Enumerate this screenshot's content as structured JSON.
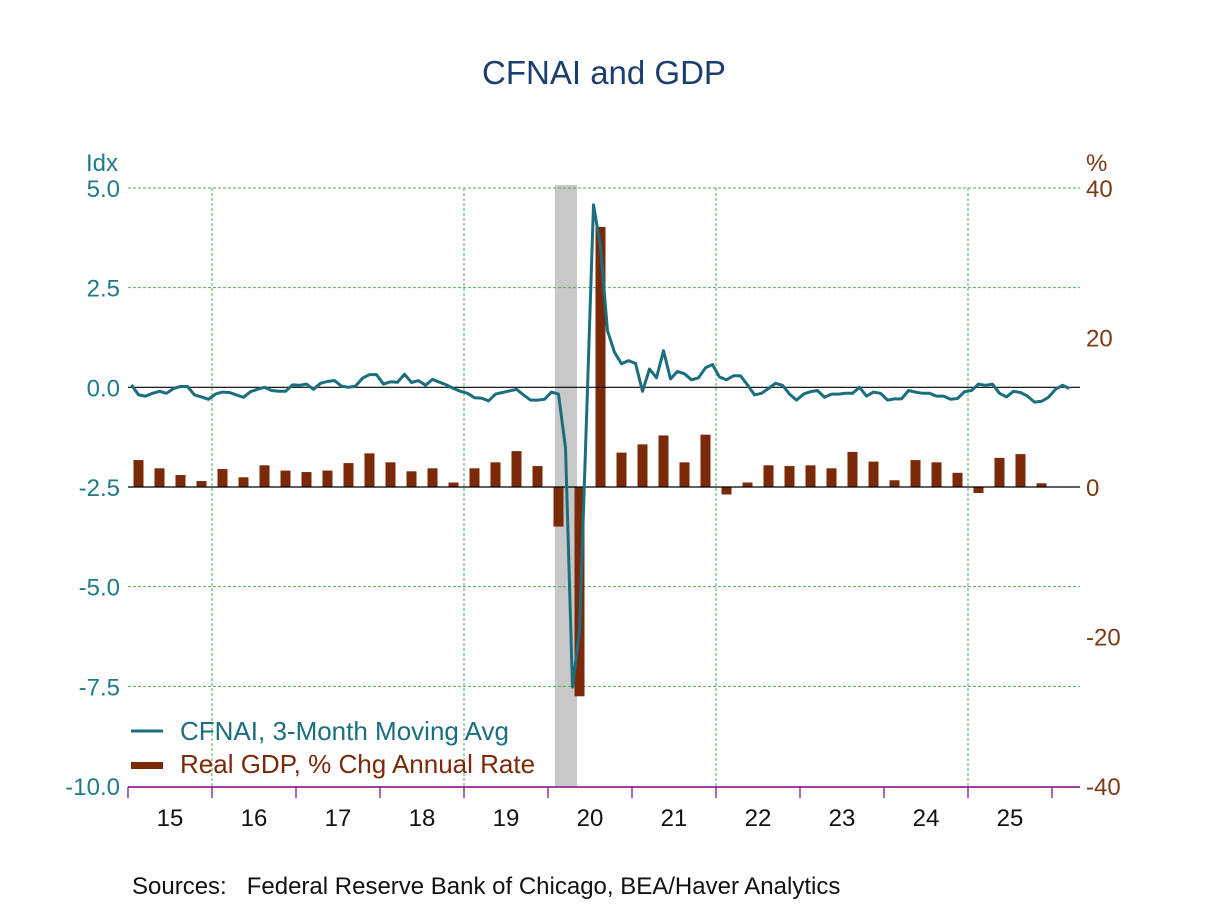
{
  "colors": {
    "cfnai": "#1a6e7e",
    "gdp": "#7a2a08",
    "title": "#1b3e6e",
    "left_axis": "#1f7a8a",
    "right_axis": "#7a3a14",
    "grid": "#4caf50",
    "axis": "#800080",
    "recession": "#c8c8c8"
  },
  "chart_data": {
    "type": "bar+line",
    "title": "CFNAI and GDP",
    "left_axis": {
      "unit": "Idx",
      "ylim": [
        -10.0,
        5.0
      ],
      "ticks": [
        "5.0",
        "2.5",
        "0.0",
        "-2.5",
        "-5.0",
        "-7.5",
        "-10.0"
      ]
    },
    "right_axis": {
      "unit": "%",
      "ylim": [
        -40,
        40
      ],
      "ticks": [
        "40",
        "20",
        "0",
        "-20",
        "-40"
      ]
    },
    "x_axis": {
      "xlim": [
        "2015-01",
        "2026-05"
      ],
      "tick_labels": [
        "15",
        "16",
        "17",
        "18",
        "19",
        "20",
        "21",
        "22",
        "23",
        "24",
        "25"
      ]
    },
    "grid": true,
    "legend_position": "bottom-left",
    "recession_shading": [
      "2020-02",
      "2020-04"
    ],
    "source": "Sources:   Federal Reserve Bank of Chicago, BEA/Haver Analytics",
    "series": [
      {
        "name": "CFNAI, 3-Month Moving Avg",
        "type": "line",
        "axis": "left",
        "start": "2015-01",
        "frequency": "monthly",
        "values": [
          0.06,
          -0.19,
          -0.22,
          -0.15,
          -0.1,
          -0.15,
          -0.03,
          0.02,
          0.02,
          -0.19,
          -0.24,
          -0.3,
          -0.17,
          -0.12,
          -0.13,
          -0.19,
          -0.25,
          -0.11,
          -0.05,
          0.0,
          -0.08,
          -0.1,
          -0.1,
          0.06,
          0.05,
          0.08,
          -0.05,
          0.1,
          0.15,
          0.17,
          0.03,
          0.0,
          0.03,
          0.23,
          0.32,
          0.32,
          0.08,
          0.14,
          0.13,
          0.33,
          0.12,
          0.17,
          0.05,
          0.2,
          0.13,
          0.06,
          -0.03,
          -0.1,
          -0.15,
          -0.26,
          -0.27,
          -0.34,
          -0.17,
          -0.13,
          -0.09,
          -0.05,
          -0.19,
          -0.32,
          -0.32,
          -0.3,
          -0.12,
          -0.17,
          -1.52,
          -7.52,
          -6.1,
          -0.8,
          4.58,
          3.52,
          1.42,
          0.88,
          0.59,
          0.67,
          0.6,
          -0.1,
          0.46,
          0.24,
          0.92,
          0.21,
          0.4,
          0.34,
          0.19,
          0.24,
          0.49,
          0.57,
          0.26,
          0.19,
          0.29,
          0.29,
          0.06,
          -0.19,
          -0.15,
          -0.03,
          0.1,
          0.05,
          -0.17,
          -0.32,
          -0.17,
          -0.11,
          -0.08,
          -0.25,
          -0.17,
          -0.17,
          -0.15,
          -0.15,
          0.0,
          -0.22,
          -0.12,
          -0.15,
          -0.32,
          -0.29,
          -0.29,
          -0.08,
          -0.12,
          -0.15,
          -0.15,
          -0.22,
          -0.22,
          -0.3,
          -0.28,
          -0.11,
          -0.08,
          0.08,
          0.05,
          0.08,
          -0.15,
          -0.24,
          -0.1,
          -0.13,
          -0.22,
          -0.37,
          -0.35,
          -0.25,
          -0.05,
          0.05,
          -0.03
        ]
      },
      {
        "name": "Real GDP, % Chg Annual Rate",
        "type": "bar",
        "axis": "right",
        "start": "2015Q1",
        "frequency": "quarterly",
        "values": [
          3.6,
          2.5,
          1.6,
          0.8,
          2.4,
          1.3,
          2.9,
          2.2,
          2.0,
          2.2,
          3.2,
          4.5,
          3.3,
          2.1,
          2.5,
          0.6,
          2.5,
          3.3,
          4.8,
          2.8,
          -5.3,
          -28.0,
          34.8,
          4.6,
          5.7,
          6.9,
          3.3,
          7.0,
          -1.0,
          0.6,
          2.9,
          2.8,
          2.9,
          2.5,
          4.7,
          3.4,
          0.9,
          3.6,
          3.3,
          1.9,
          -0.8,
          3.9,
          4.4,
          0.5
        ]
      }
    ]
  }
}
